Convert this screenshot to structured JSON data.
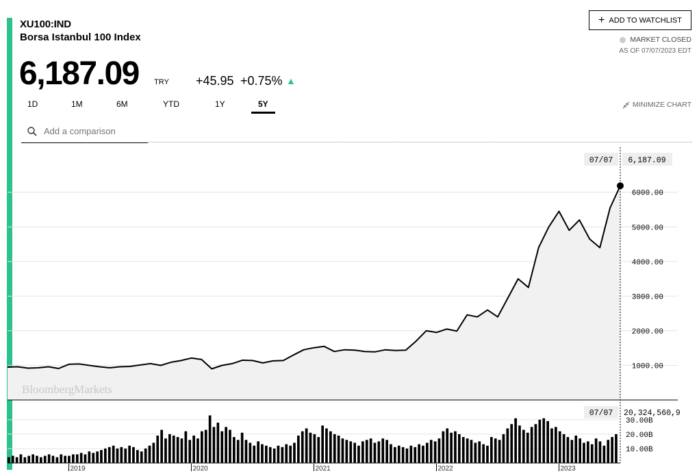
{
  "header": {
    "ticker": "XU100:IND",
    "name": "Borsa Istanbul 100 Index",
    "price": "6,187.09",
    "currency": "TRY",
    "change": "+45.95",
    "change_pct": "+0.75%",
    "watchlist_label": "ADD TO WATCHLIST",
    "market_status": "MARKET CLOSED",
    "as_of": "AS OF 07/07/2023 EDT",
    "accent_color": "#2bc28c"
  },
  "ranges": [
    "1D",
    "1M",
    "6M",
    "YTD",
    "1Y",
    "5Y"
  ],
  "active_range": "5Y",
  "minimize_label": "MINIMIZE CHART",
  "comparison_placeholder": "Add a comparison",
  "watermark": "BloombergMarkets",
  "chart_data": [
    {
      "type": "area",
      "x": [
        "2018-07",
        "2018-08",
        "2018-09",
        "2018-10",
        "2018-11",
        "2018-12",
        "2019-01",
        "2019-02",
        "2019-03",
        "2019-04",
        "2019-05",
        "2019-06",
        "2019-07",
        "2019-08",
        "2019-09",
        "2019-10",
        "2019-11",
        "2019-12",
        "2020-01",
        "2020-02",
        "2020-03",
        "2020-04",
        "2020-05",
        "2020-06",
        "2020-07",
        "2020-08",
        "2020-09",
        "2020-10",
        "2020-11",
        "2020-12",
        "2021-01",
        "2021-02",
        "2021-03",
        "2021-04",
        "2021-05",
        "2021-06",
        "2021-07",
        "2021-08",
        "2021-09",
        "2021-10",
        "2021-11",
        "2021-12",
        "2022-01",
        "2022-02",
        "2022-03",
        "2022-04",
        "2022-05",
        "2022-06",
        "2022-07",
        "2022-08",
        "2022-09",
        "2022-10",
        "2022-11",
        "2022-12",
        "2023-01",
        "2023-02",
        "2023-03",
        "2023-04",
        "2023-05",
        "2023-06",
        "2023-07"
      ],
      "values": [
        950,
        960,
        920,
        930,
        960,
        910,
        1030,
        1040,
        1000,
        960,
        930,
        960,
        970,
        1010,
        1050,
        1000,
        1090,
        1140,
        1210,
        1170,
        900,
        1000,
        1050,
        1150,
        1140,
        1070,
        1130,
        1140,
        1300,
        1450,
        1510,
        1550,
        1400,
        1450,
        1440,
        1400,
        1390,
        1450,
        1430,
        1440,
        1700,
        2000,
        1950,
        2050,
        1990,
        2460,
        2400,
        2600,
        2400,
        2950,
        3500,
        3250,
        4400,
        5000,
        5450,
        4900,
        5200,
        4650,
        4400,
        5550,
        6187.09
      ],
      "xlabel": "",
      "ylabel": "",
      "x_tick_labels": [
        "2019",
        "2020",
        "2021",
        "2022",
        "2023"
      ],
      "y_tick_labels": [
        "1000.00",
        "2000.00",
        "3000.00",
        "4000.00",
        "5000.00",
        "6000.00"
      ],
      "ylim": [
        0,
        7300
      ],
      "grid": true,
      "last_point_label": "07/07",
      "last_point_value": "6,187.09",
      "line_color": "#000000",
      "fill_color": "#f1f1f1"
    },
    {
      "type": "bar",
      "name": "volume",
      "x_start": "2018-07",
      "values_billion": [
        4,
        5,
        4,
        6,
        4,
        5,
        6,
        5,
        4,
        5,
        6,
        5,
        4,
        6,
        5,
        5,
        6,
        6,
        7,
        6,
        8,
        7,
        8,
        9,
        10,
        11,
        12,
        10,
        11,
        10,
        12,
        11,
        9,
        8,
        10,
        12,
        14,
        19,
        23,
        17,
        20,
        19,
        18,
        17,
        22,
        16,
        19,
        17,
        22,
        23,
        33,
        25,
        28,
        22,
        25,
        23,
        18,
        16,
        21,
        16,
        14,
        12,
        15,
        13,
        12,
        11,
        10,
        12,
        11,
        13,
        12,
        14,
        19,
        22,
        24,
        21,
        20,
        18,
        26,
        24,
        22,
        20,
        19,
        17,
        16,
        15,
        14,
        12,
        15,
        16,
        17,
        14,
        15,
        17,
        16,
        13,
        11,
        12,
        11,
        10,
        12,
        11,
        13,
        12,
        14,
        16,
        15,
        17,
        22,
        24,
        21,
        22,
        20,
        18,
        17,
        16,
        14,
        15,
        13,
        12,
        18,
        17,
        16,
        20,
        24,
        27,
        31,
        26,
        23,
        21,
        25,
        27,
        30,
        31,
        29,
        24,
        25,
        22,
        20,
        18,
        16,
        19,
        17,
        14,
        15,
        13,
        17,
        15,
        12,
        16,
        18,
        20
      ],
      "y_tick_labels": [
        "10.00B",
        "20.00B",
        "30.00B"
      ],
      "ylim": [
        0,
        38
      ],
      "last_point_label": "07/07",
      "last_point_value": "20,324,560,9"
    }
  ]
}
